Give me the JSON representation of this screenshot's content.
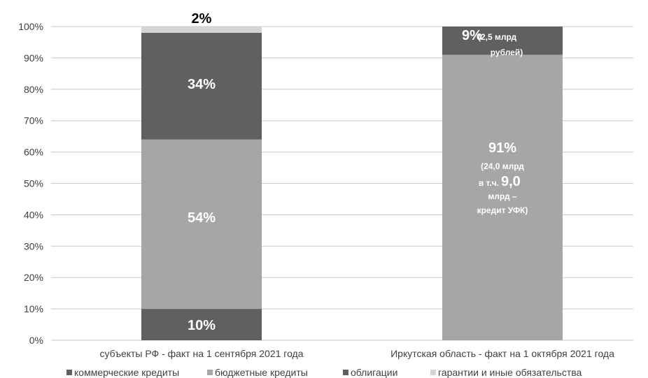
{
  "chart_data": {
    "type": "bar",
    "stacked": true,
    "percent": true,
    "categories": [
      "субъекты РФ - факт на 1 сентября 2021 года",
      "Иркутская область - факт на 1 октября 2021 года"
    ],
    "series": [
      {
        "name": "коммерческие кредиты",
        "values": [
          10,
          0
        ],
        "color": "#606060"
      },
      {
        "name": "бюджетные кредиты",
        "values": [
          54,
          91
        ],
        "color": "#a6a6a6"
      },
      {
        "name": "облигации",
        "values": [
          34,
          9
        ],
        "color": "#606060"
      },
      {
        "name": "гарантии и иные обязательства",
        "values": [
          2,
          0
        ],
        "color": "#d4d4d4"
      }
    ],
    "yticks": [
      "0%",
      "10%",
      "20%",
      "30%",
      "40%",
      "50%",
      "60%",
      "70%",
      "80%",
      "90%",
      "100%"
    ],
    "ylim": [
      0,
      100
    ],
    "grid": true,
    "legend_position": "bottom",
    "data_labels": {
      "c0_commercial": "10%",
      "c0_budget": "54%",
      "c0_bonds": "34%",
      "c0_guarantees": "2%",
      "c1_bonds_main": "9%",
      "c1_bonds_note_a": "(2,5 млрд",
      "c1_bonds_note_b": "рублей)",
      "c1_budget_main": "91%",
      "c1_budget_line1": "(24,0 млрд",
      "c1_budget_line2a": "в т.ч.",
      "c1_budget_line2b": "9,0",
      "c1_budget_line3": "млрд –",
      "c1_budget_line4": "кредит УФК)"
    }
  }
}
